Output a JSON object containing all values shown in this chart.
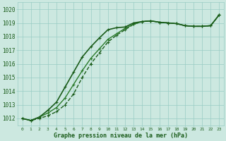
{
  "title": "Graphe pression niveau de la mer (hPa)",
  "x_labels": [
    "0",
    "1",
    "2",
    "3",
    "4",
    "5",
    "6",
    "7",
    "8",
    "9",
    "10",
    "11",
    "12",
    "13",
    "14",
    "15",
    "16",
    "17",
    "18",
    "19",
    "20",
    "21",
    "22",
    "23"
  ],
  "ylim": [
    1011.5,
    1020.5
  ],
  "yticks": [
    1012,
    1013,
    1014,
    1015,
    1016,
    1017,
    1018,
    1019,
    1020
  ],
  "background_color": "#cce8e0",
  "grid_color": "#99ccc4",
  "line_color_dark": "#1a5c1a",
  "line_color_mid": "#2a7a2a",
  "series": [
    [
      1012.0,
      1011.85,
      1012.0,
      1012.2,
      1012.5,
      1013.0,
      1013.8,
      1015.0,
      1016.0,
      1016.8,
      1017.6,
      1018.1,
      1018.5,
      1018.9,
      1019.1,
      1019.15,
      1019.05,
      1019.0,
      1018.95,
      1018.8,
      1018.75,
      1018.75,
      1018.8,
      1019.6
    ],
    [
      1012.0,
      1011.85,
      1012.1,
      1012.4,
      1012.8,
      1013.5,
      1014.5,
      1015.5,
      1016.4,
      1017.1,
      1017.8,
      1018.2,
      1018.6,
      1018.9,
      1019.1,
      1019.15,
      1019.05,
      1019.0,
      1018.95,
      1018.8,
      1018.75,
      1018.75,
      1018.8,
      1019.6
    ],
    [
      1012.0,
      1011.85,
      1012.1,
      1012.6,
      1013.2,
      1014.3,
      1015.4,
      1016.5,
      1017.25,
      1017.9,
      1018.5,
      1018.65,
      1018.7,
      1019.0,
      1019.1,
      1019.15,
      1019.05,
      1019.0,
      1018.95,
      1018.8,
      1018.75,
      1018.75,
      1018.8,
      1019.6
    ]
  ]
}
